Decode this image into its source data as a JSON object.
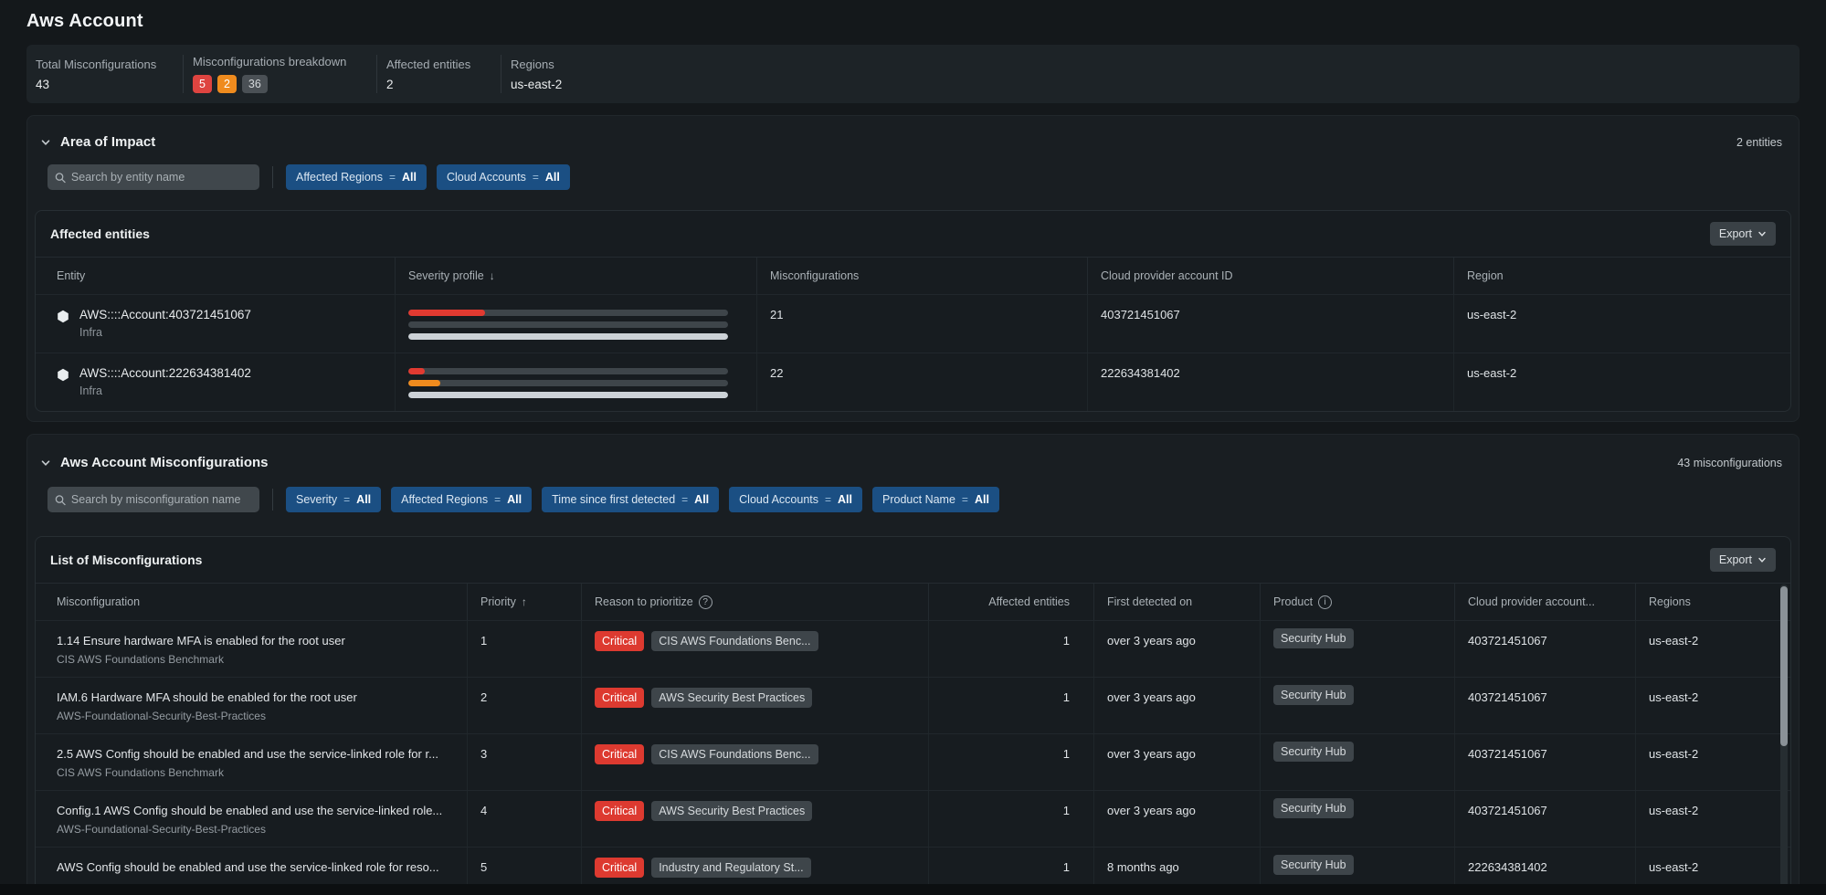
{
  "colors": {
    "critical": "#dd3a30",
    "high": "#ef8b1e",
    "muted_badge": "#4a5055",
    "accent_blue": "#1b4f83",
    "severity_track": "#3e454a",
    "severity_info_fill": "#ccd2d7"
  },
  "page": {
    "title": "Aws Account"
  },
  "stats": {
    "items": [
      {
        "label": "Total Misconfigurations",
        "value": "43"
      },
      {
        "label": "Misconfigurations breakdown",
        "badges": [
          {
            "count": "5",
            "severity": "critical"
          },
          {
            "count": "2",
            "severity": "high"
          },
          {
            "count": "36",
            "severity": "other"
          }
        ]
      },
      {
        "label": "Affected entities",
        "value": "2"
      },
      {
        "label": "Regions",
        "value": "us-east-2"
      }
    ]
  },
  "area_of_impact": {
    "title": "Area of Impact",
    "count_label": "2 entities",
    "search_placeholder": "Search by entity name",
    "filters": [
      {
        "name": "Affected Regions",
        "op": "=",
        "value": "All"
      },
      {
        "name": "Cloud Accounts",
        "op": "=",
        "value": "All"
      }
    ],
    "card": {
      "title": "Affected entities",
      "export_label": "Export",
      "sort": {
        "column": "Severity profile",
        "direction": "desc"
      },
      "columns": [
        "Entity",
        "Severity profile",
        "Misconfigurations",
        "Cloud provider account ID",
        "Region"
      ],
      "rows": [
        {
          "entity": "AWS::::Account:403721451067",
          "entity_type": "Infra",
          "severity_bars": [
            {
              "color": "#e13a31",
              "pct": 24
            },
            {
              "color": "#ef8b1e",
              "pct": 0
            },
            {
              "color": "#ccd2d7",
              "pct": 100
            }
          ],
          "misconfigurations": "21",
          "account_id": "403721451067",
          "region": "us-east-2"
        },
        {
          "entity": "AWS::::Account:222634381402",
          "entity_type": "Infra",
          "severity_bars": [
            {
              "color": "#e13a31",
              "pct": 5
            },
            {
              "color": "#ef8b1e",
              "pct": 10
            },
            {
              "color": "#ccd2d7",
              "pct": 100
            }
          ],
          "misconfigurations": "22",
          "account_id": "222634381402",
          "region": "us-east-2"
        }
      ]
    }
  },
  "misconfigurations": {
    "title": "Aws Account Misconfigurations",
    "count_label": "43 misconfigurations",
    "search_placeholder": "Search by misconfiguration name",
    "filters": [
      {
        "name": "Severity",
        "op": "=",
        "value": "All"
      },
      {
        "name": "Affected Regions",
        "op": "=",
        "value": "All"
      },
      {
        "name": "Time since first detected",
        "op": "=",
        "value": "All"
      },
      {
        "name": "Cloud Accounts",
        "op": "=",
        "value": "All"
      },
      {
        "name": "Product Name",
        "op": "=",
        "value": "All"
      }
    ],
    "card": {
      "title": "List of Misconfigurations",
      "export_label": "Export",
      "sort": {
        "column": "Priority",
        "direction": "asc"
      },
      "columns": [
        "Misconfiguration",
        "Priority",
        "Reason to prioritize",
        "Affected entities",
        "First detected on",
        "Product",
        "Cloud provider account...",
        "Regions"
      ],
      "rows": [
        {
          "name": "1.14 Ensure hardware MFA is enabled for the root user",
          "framework": "CIS AWS Foundations Benchmark",
          "priority": "1",
          "severity": "Critical",
          "reason": "CIS AWS Foundations Benc...",
          "affected": "1",
          "first_detected": "over 3 years ago",
          "product": "Security Hub",
          "account_id": "403721451067",
          "region": "us-east-2"
        },
        {
          "name": "IAM.6 Hardware MFA should be enabled for the root user",
          "framework": "AWS-Foundational-Security-Best-Practices",
          "priority": "2",
          "severity": "Critical",
          "reason": "AWS Security Best Practices",
          "affected": "1",
          "first_detected": "over 3 years ago",
          "product": "Security Hub",
          "account_id": "403721451067",
          "region": "us-east-2"
        },
        {
          "name": "2.5 AWS Config should be enabled and use the service-linked role for r...",
          "framework": "CIS AWS Foundations Benchmark",
          "priority": "3",
          "severity": "Critical",
          "reason": "CIS AWS Foundations Benc...",
          "affected": "1",
          "first_detected": "over 3 years ago",
          "product": "Security Hub",
          "account_id": "403721451067",
          "region": "us-east-2"
        },
        {
          "name": "Config.1 AWS Config should be enabled and use the service-linked role...",
          "framework": "AWS-Foundational-Security-Best-Practices",
          "priority": "4",
          "severity": "Critical",
          "reason": "AWS Security Best Practices",
          "affected": "1",
          "first_detected": "over 3 years ago",
          "product": "Security Hub",
          "account_id": "403721451067",
          "region": "us-east-2"
        },
        {
          "name": "AWS Config should be enabled and use the service-linked role for reso...",
          "framework": "",
          "priority": "5",
          "severity": "Critical",
          "reason": "Industry and Regulatory St...",
          "affected": "1",
          "first_detected": "8 months ago",
          "product": "Security Hub",
          "account_id": "222634381402",
          "region": "us-east-2"
        }
      ]
    }
  }
}
